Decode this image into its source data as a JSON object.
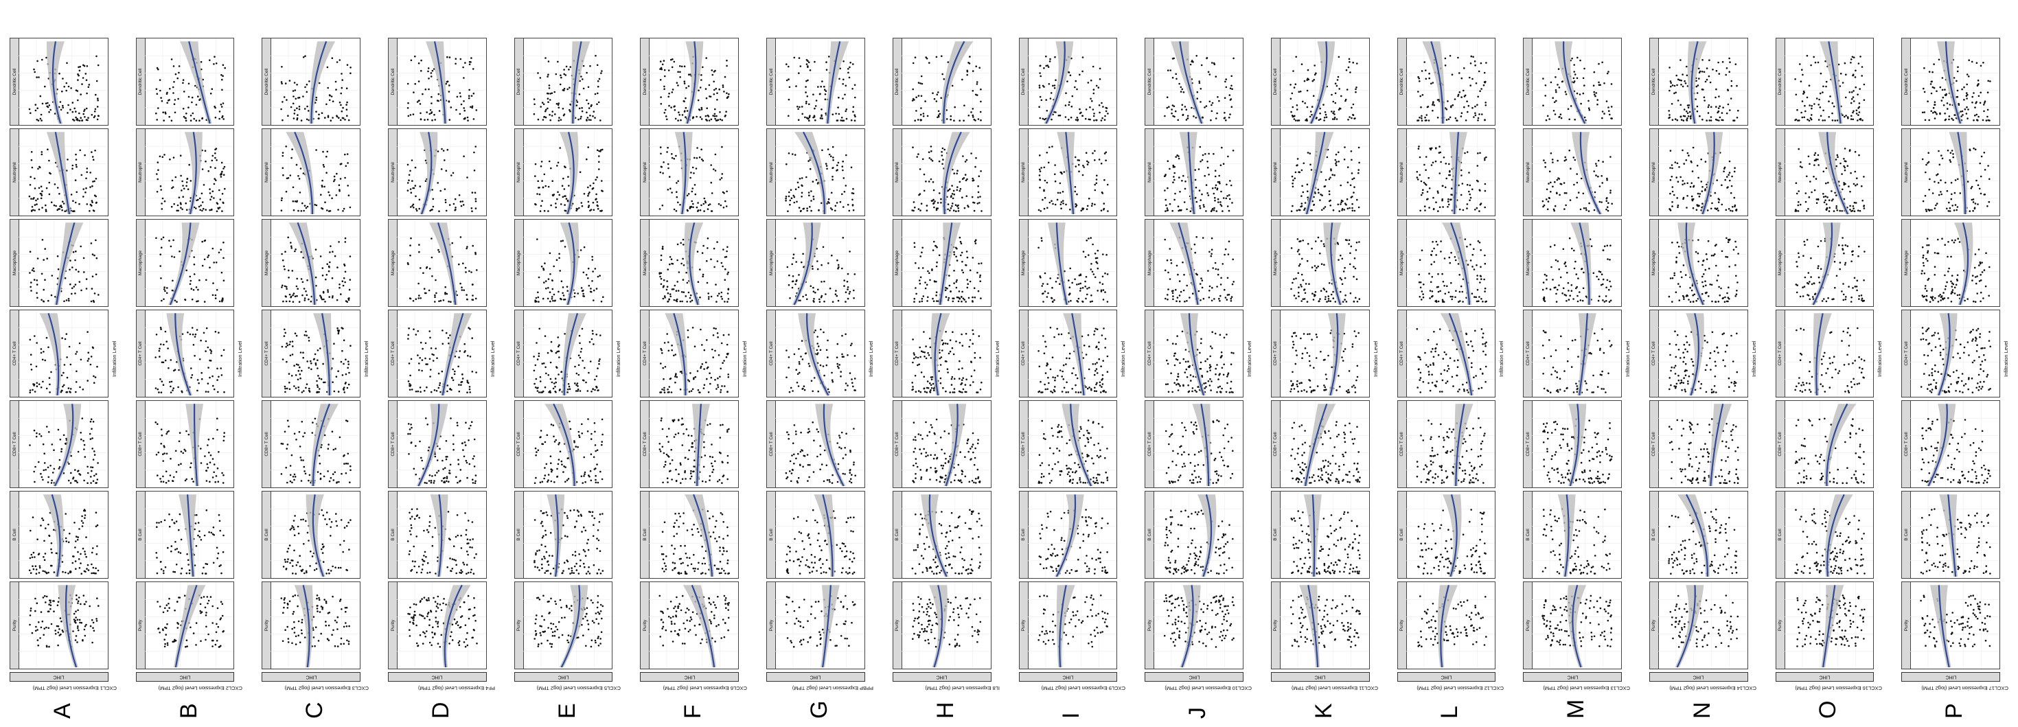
{
  "page": {
    "x_axis_label": "Infiltration Level",
    "facet_label": "LIHC",
    "cell_types": [
      "Purity",
      "B Cell",
      "CD8+ T Cell",
      "CD4+ T Cell",
      "Macrophage",
      "Neutrophil",
      "Dendritic Cell"
    ],
    "colors": {
      "fit_line": "#2e4a9a",
      "ci_band": "#bdbdbd",
      "points": "#111111",
      "annotation": "#d11a1a",
      "strip": "#d9d9d9"
    }
  },
  "rows": [
    {
      "letter": "A",
      "gene": "CXCL1"
    },
    {
      "letter": "B",
      "gene": "CXCL2"
    },
    {
      "letter": "C",
      "gene": "CXCL3"
    },
    {
      "letter": "D",
      "gene": "PF4"
    },
    {
      "letter": "E",
      "gene": "CXCL5"
    },
    {
      "letter": "F",
      "gene": "CXCL6"
    },
    {
      "letter": "G",
      "gene": "PPBP"
    },
    {
      "letter": "H",
      "gene": "IL8"
    },
    {
      "letter": "I",
      "gene": "CXCL9"
    },
    {
      "letter": "J",
      "gene": "CXCL10"
    },
    {
      "letter": "K",
      "gene": "CXCL11"
    },
    {
      "letter": "L",
      "gene": "CXCL12"
    },
    {
      "letter": "M",
      "gene": "CXCL13"
    },
    {
      "letter": "N",
      "gene": "CXCL14"
    },
    {
      "letter": "O",
      "gene": "CXCL16"
    },
    {
      "letter": "P",
      "gene": "CXCL17"
    }
  ]
}
